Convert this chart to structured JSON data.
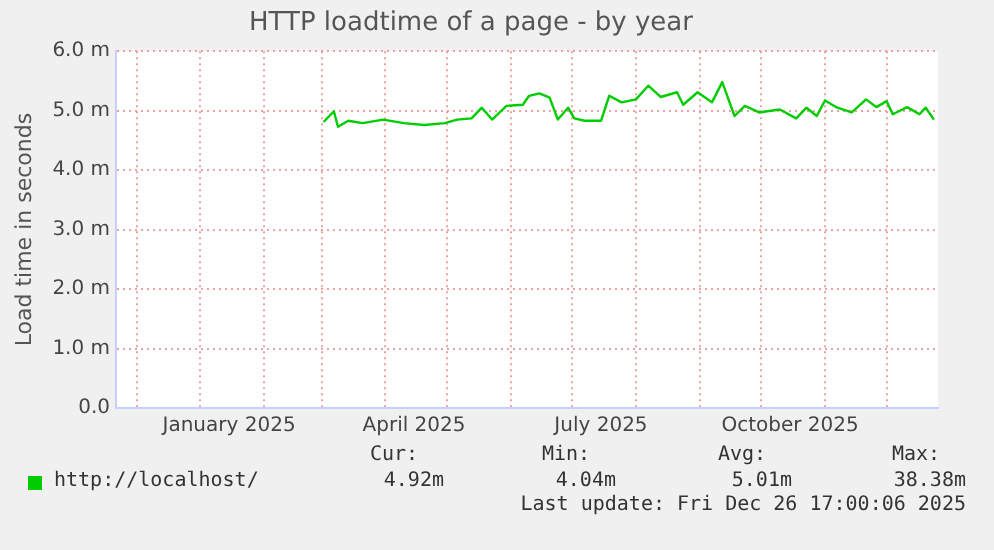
{
  "chart_data": {
    "type": "line",
    "title": "HTTP loadtime of a page - by year",
    "ylabel": "Load time in seconds",
    "x": [
      "2025-03-02",
      "2025-03-07",
      "2025-03-09",
      "2025-03-14",
      "2025-03-21",
      "2025-03-31",
      "2025-04-10",
      "2025-04-20",
      "2025-04-30",
      "2025-05-06",
      "2025-05-13",
      "2025-05-18",
      "2025-05-23",
      "2025-05-30",
      "2025-06-07",
      "2025-06-10",
      "2025-06-15",
      "2025-06-20",
      "2025-06-24",
      "2025-06-29",
      "2025-07-02",
      "2025-07-07",
      "2025-07-15",
      "2025-07-19",
      "2025-07-25",
      "2025-08-01",
      "2025-08-07",
      "2025-08-13",
      "2025-08-21",
      "2025-08-24",
      "2025-08-31",
      "2025-09-07",
      "2025-09-12",
      "2025-09-18",
      "2025-09-23",
      "2025-09-30",
      "2025-10-10",
      "2025-10-18",
      "2025-10-23",
      "2025-10-28",
      "2025-11-01",
      "2025-11-07",
      "2025-11-14",
      "2025-11-21",
      "2025-11-26",
      "2025-12-01",
      "2025-12-04",
      "2025-12-11",
      "2025-12-17",
      "2025-12-20",
      "2025-12-24"
    ],
    "series": [
      {
        "name": "http://localhost/",
        "color": "#00cc00",
        "values": [
          4.81,
          4.99,
          4.73,
          4.83,
          4.79,
          4.85,
          4.79,
          4.76,
          4.79,
          4.85,
          4.87,
          5.05,
          4.85,
          5.08,
          5.1,
          5.25,
          5.29,
          5.22,
          4.85,
          5.05,
          4.87,
          4.83,
          4.83,
          5.25,
          5.14,
          5.19,
          5.42,
          5.23,
          5.31,
          5.1,
          5.31,
          5.14,
          5.48,
          4.91,
          5.08,
          4.97,
          5.02,
          4.87,
          5.05,
          4.91,
          5.17,
          5.05,
          4.97,
          5.19,
          5.06,
          5.16,
          4.94,
          5.06,
          4.94,
          5.05,
          4.85
        ]
      }
    ],
    "xlim": [
      "2024-11-21",
      "2025-12-26"
    ],
    "xticks": [
      {
        "value": "2024-12-01",
        "label": null
      },
      {
        "value": "2025-01-01",
        "label": null
      },
      {
        "value": "2025-01-15",
        "label": "January 2025"
      },
      {
        "value": "2025-02-01",
        "label": null
      },
      {
        "value": "2025-03-01",
        "label": null
      },
      {
        "value": "2025-04-01",
        "label": null
      },
      {
        "value": "2025-04-15",
        "label": "April 2025"
      },
      {
        "value": "2025-05-01",
        "label": null
      },
      {
        "value": "2025-06-01",
        "label": null
      },
      {
        "value": "2025-07-01",
        "label": null
      },
      {
        "value": "2025-07-15",
        "label": "July 2025"
      },
      {
        "value": "2025-08-01",
        "label": null
      },
      {
        "value": "2025-09-01",
        "label": null
      },
      {
        "value": "2025-10-01",
        "label": null
      },
      {
        "value": "2025-10-15",
        "label": "October 2025"
      },
      {
        "value": "2025-11-01",
        "label": null
      },
      {
        "value": "2025-12-01",
        "label": null
      }
    ],
    "ylim": [
      0,
      6
    ],
    "yticks": [
      {
        "value": 0,
        "label": "0.0"
      },
      {
        "value": 1,
        "label": "1.0 m"
      },
      {
        "value": 2,
        "label": "2.0 m"
      },
      {
        "value": 3,
        "label": "3.0 m"
      },
      {
        "value": 4,
        "label": "4.0 m"
      },
      {
        "value": 5,
        "label": "5.0 m"
      },
      {
        "value": 6,
        "label": "6.0 m"
      }
    ],
    "grid": true,
    "legend": "bottom left",
    "marker": "none",
    "line_style": "solid",
    "annotations": [
      "Cur:",
      "Min:",
      "Avg:",
      "Max:",
      "4.92m",
      "4.04m",
      "5.01m",
      "38.38m",
      "Last update: Fri Dec 26 17:00:06 2025"
    ]
  }
}
